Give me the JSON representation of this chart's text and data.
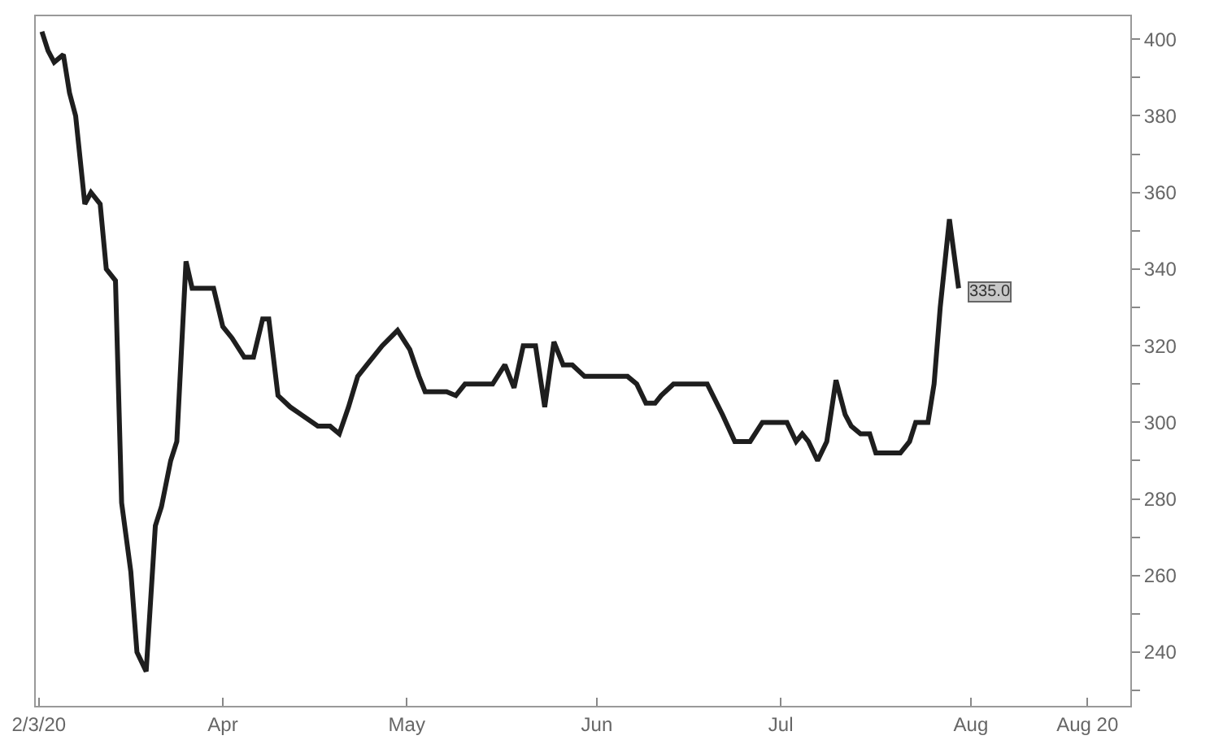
{
  "chart_data": {
    "type": "line",
    "x": [
      "2020-03-02T12:00",
      "2020-03-03T12:00",
      "2020-03-04T12:00",
      "2020-03-06",
      "2020-03-07",
      "2020-03-08",
      "2020-03-09T12:00",
      "2020-03-10T12:00",
      "2020-03-12",
      "2020-03-13",
      "2020-03-14T12:00",
      "2020-03-15T12:00",
      "2020-03-17",
      "2020-03-18",
      "2020-03-19T12:00",
      "2020-03-21",
      "2020-03-22",
      "2020-03-23T12:00",
      "2020-03-24T12:00",
      "2020-03-26",
      "2020-03-27",
      "2020-03-30",
      "2020-03-30T12:00",
      "2020-04-01",
      "2020-04-02T12:00",
      "2020-04-04T12:00",
      "2020-04-06",
      "2020-04-07T12:00",
      "2020-04-08T12:00",
      "2020-04-10",
      "2020-04-12",
      "2020-04-16T12:00",
      "2020-04-18T12:00",
      "2020-04-20",
      "2020-04-21T12:00",
      "2020-04-23",
      "2020-04-24T12:00",
      "2020-04-27",
      "2020-04-29T12:00",
      "2020-05-01T12:00",
      "2020-05-03",
      "2020-05-04",
      "2020-05-07T12:00",
      "2020-05-09",
      "2020-05-10T12:00",
      "2020-05-15",
      "2020-05-17",
      "2020-05-18T12:00",
      "2020-05-20",
      "2020-05-22",
      "2020-05-23T12:00",
      "2020-05-25",
      "2020-05-26T12:00",
      "2020-05-28",
      "2020-05-30",
      "2020-06-06",
      "2020-06-07T12:00",
      "2020-06-09",
      "2020-06-10T12:00",
      "2020-06-11T12:00",
      "2020-06-13T12:00",
      "2020-06-19",
      "2020-06-21T12:00",
      "2020-06-23T12:00",
      "2020-06-26",
      "2020-06-28",
      "2020-07-02",
      "2020-07-03T12:00",
      "2020-07-04T12:00",
      "2020-07-05T12:00",
      "2020-07-07",
      "2020-07-08T12:00",
      "2020-07-10",
      "2020-07-11T12:00",
      "2020-07-12T12:00",
      "2020-07-14",
      "2020-07-15T12:00",
      "2020-07-16T12:00",
      "2020-07-20T12:00",
      "2020-07-22",
      "2020-07-23",
      "2020-07-25",
      "2020-07-26",
      "2020-07-27",
      "2020-07-28T12:00",
      "2020-07-30"
    ],
    "series": [
      {
        "color": "#1e1e1e",
        "values": [
          402,
          397,
          394,
          396,
          386,
          380,
          357,
          360,
          357,
          340,
          337,
          279,
          261,
          240,
          235,
          273,
          278,
          290,
          295,
          342,
          335,
          335,
          335,
          325,
          322,
          317,
          317,
          327,
          327,
          307,
          304,
          299,
          299,
          297,
          304,
          312,
          315,
          320,
          324,
          319,
          312,
          308,
          308,
          307,
          310,
          310,
          315,
          309,
          320,
          320,
          304,
          321,
          315,
          315,
          312,
          312,
          310,
          305,
          305,
          307,
          310,
          310,
          302,
          295,
          295,
          300,
          300,
          295,
          297,
          295,
          290,
          295,
          311,
          302,
          299,
          297,
          297,
          292,
          292,
          295,
          300,
          300,
          310,
          330,
          353,
          335
        ]
      }
    ],
    "xlim": [
      "2020-03-01T12:00",
      "2020-08-27"
    ],
    "xticks": [
      {
        "value": "2020-03-02",
        "label": "2/3/20"
      },
      {
        "value": "2020-04-01",
        "label": "Apr"
      },
      {
        "value": "2020-05-01",
        "label": "May"
      },
      {
        "value": "2020-06-01",
        "label": "Jun"
      },
      {
        "value": "2020-07-01",
        "label": "Jul"
      },
      {
        "value": "2020-08-01",
        "label": "Aug"
      },
      {
        "value": "2020-08-20",
        "label": "Aug 20"
      }
    ],
    "ylim": [
      226,
      406
    ],
    "yticks": [
      {
        "value": 230,
        "label": null
      },
      240,
      {
        "value": 250,
        "label": null
      },
      260,
      {
        "value": 270,
        "label": null
      },
      280,
      {
        "value": 290,
        "label": null
      },
      300,
      {
        "value": 310,
        "label": null
      },
      320,
      {
        "value": 330,
        "label": null
      },
      340,
      {
        "value": 350,
        "label": null
      },
      360,
      {
        "value": 370,
        "label": null
      },
      380,
      {
        "value": 390,
        "label": null
      },
      400
    ],
    "annotations": [
      {
        "text": "335.0",
        "x": "2020-07-30",
        "y": 335
      }
    ],
    "grid": false,
    "marker": "none",
    "line_style": "solid"
  }
}
